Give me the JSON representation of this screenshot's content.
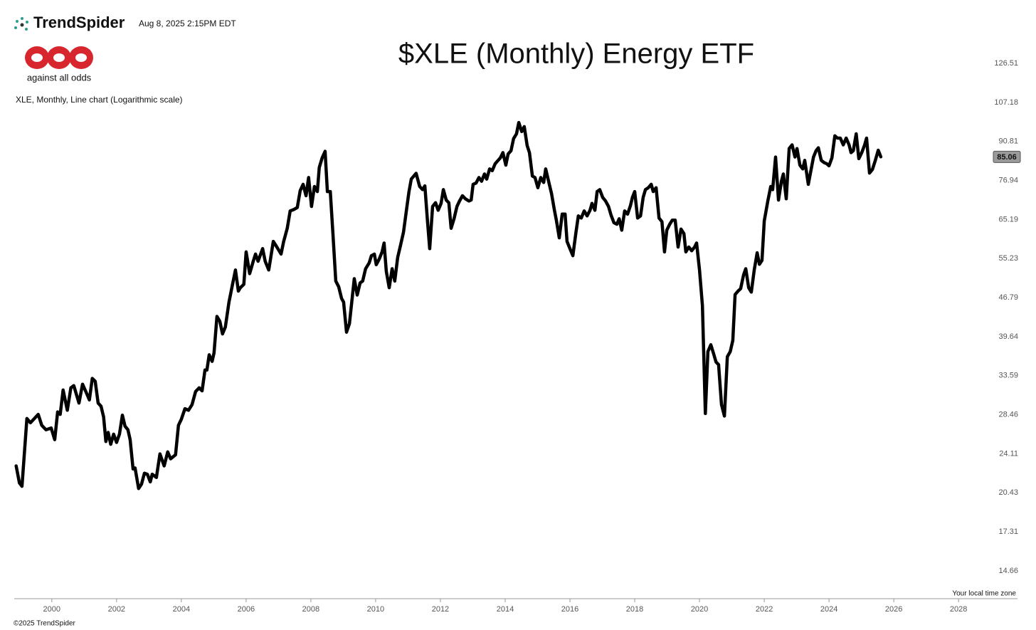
{
  "header": {
    "brand": "TrendSpider",
    "timestamp": "Aug 8, 2025 2:15PM EDT"
  },
  "logo_caption": "against all odds",
  "footer": {
    "copyright": "©2025 TrendSpider",
    "timezone_note": "Your local time zone"
  },
  "chart_data": {
    "type": "line",
    "title": "$XLE (Monthly) Energy ETF",
    "subtitle": "XLE, Monthly, Line chart (Logarithmic scale)",
    "color": "#000000",
    "log_scale": true,
    "last_value": 85.06,
    "xlim": [
      1998.84,
      2029.82
    ],
    "ylim": [
      13.07,
      138.1
    ],
    "xticks": [
      2000,
      2002,
      2004,
      2006,
      2008,
      2010,
      2012,
      2014,
      2016,
      2018,
      2020,
      2022,
      2024,
      2026,
      2028
    ],
    "yticks": [
      126.51,
      107.18,
      90.81,
      76.94,
      65.19,
      55.23,
      46.79,
      39.64,
      33.59,
      28.46,
      24.11,
      20.43,
      17.31,
      14.66
    ],
    "x": [
      1998.9,
      1999.0,
      1999.08,
      1999.23,
      1999.34,
      1999.58,
      1999.69,
      1999.82,
      1999.98,
      2000.09,
      2000.18,
      2000.26,
      2000.35,
      2000.48,
      2000.59,
      2000.68,
      2000.84,
      2000.95,
      2001.05,
      2001.16,
      2001.25,
      2001.34,
      2001.43,
      2001.52,
      2001.6,
      2001.67,
      2001.74,
      2001.82,
      2001.91,
      2002.0,
      2002.09,
      2002.18,
      2002.26,
      2002.35,
      2002.42,
      2002.51,
      2002.57,
      2002.68,
      2002.77,
      2002.86,
      2002.95,
      2003.04,
      2003.1,
      2003.23,
      2003.34,
      2003.47,
      2003.58,
      2003.67,
      2003.82,
      2003.91,
      2004.0,
      2004.11,
      2004.22,
      2004.33,
      2004.44,
      2004.55,
      2004.64,
      2004.73,
      2004.79,
      2004.86,
      2004.95,
      2005.01,
      2005.1,
      2005.19,
      2005.27,
      2005.36,
      2005.47,
      2005.58,
      2005.67,
      2005.76,
      2005.82,
      2005.93,
      2006.0,
      2006.11,
      2006.22,
      2006.29,
      2006.37,
      2006.51,
      2006.59,
      2006.7,
      2006.84,
      2006.95,
      2007.08,
      2007.16,
      2007.27,
      2007.36,
      2007.47,
      2007.58,
      2007.67,
      2007.76,
      2007.85,
      2007.93,
      2008.02,
      2008.11,
      2008.2,
      2008.26,
      2008.35,
      2008.44,
      2008.51,
      2008.6,
      2008.68,
      2008.77,
      2008.86,
      2008.95,
      2009.01,
      2009.1,
      2009.19,
      2009.25,
      2009.34,
      2009.43,
      2009.52,
      2009.6,
      2009.69,
      2009.8,
      2009.87,
      2009.96,
      2010.02,
      2010.11,
      2010.2,
      2010.26,
      2010.33,
      2010.42,
      2010.51,
      2010.59,
      2010.68,
      2010.77,
      2010.86,
      2010.95,
      2011.03,
      2011.1,
      2011.25,
      2011.36,
      2011.45,
      2011.52,
      2011.6,
      2011.67,
      2011.76,
      2011.85,
      2011.93,
      2012.02,
      2012.09,
      2012.18,
      2012.26,
      2012.33,
      2012.42,
      2012.51,
      2012.59,
      2012.68,
      2012.77,
      2012.88,
      2012.95,
      2013.01,
      2013.1,
      2013.19,
      2013.27,
      2013.36,
      2013.43,
      2013.52,
      2013.6,
      2013.69,
      2013.78,
      2013.85,
      2013.93,
      2014.02,
      2014.09,
      2014.18,
      2014.26,
      2014.35,
      2014.42,
      2014.51,
      2014.59,
      2014.68,
      2014.75,
      2014.84,
      2014.92,
      2015.01,
      2015.1,
      2015.19,
      2015.25,
      2015.34,
      2015.43,
      2015.52,
      2015.58,
      2015.67,
      2015.76,
      2015.85,
      2015.91,
      2016.0,
      2016.09,
      2016.18,
      2016.26,
      2016.35,
      2016.44,
      2016.53,
      2016.62,
      2016.68,
      2016.77,
      2016.84,
      2016.92,
      2017.01,
      2017.1,
      2017.19,
      2017.27,
      2017.36,
      2017.45,
      2017.52,
      2017.6,
      2017.69,
      2017.78,
      2017.87,
      2017.93,
      2018.0,
      2018.09,
      2018.18,
      2018.26,
      2018.33,
      2018.42,
      2018.51,
      2018.57,
      2018.66,
      2018.75,
      2018.84,
      2018.92,
      2018.99,
      2019.08,
      2019.16,
      2019.25,
      2019.34,
      2019.43,
      2019.52,
      2019.58,
      2019.67,
      2019.76,
      2019.85,
      2019.91,
      2020.0,
      2020.09,
      2020.18,
      2020.26,
      2020.35,
      2020.44,
      2020.51,
      2020.59,
      2020.68,
      2020.77,
      2020.86,
      2020.95,
      2021.03,
      2021.1,
      2021.19,
      2021.27,
      2021.36,
      2021.43,
      2021.52,
      2021.6,
      2021.69,
      2021.78,
      2021.85,
      2021.93,
      2022.0,
      2022.11,
      2022.2,
      2022.26,
      2022.35,
      2022.44,
      2022.53,
      2022.59,
      2022.68,
      2022.77,
      2022.86,
      2022.95,
      2023.01,
      2023.1,
      2023.19,
      2023.25,
      2023.36,
      2023.43,
      2023.52,
      2023.6,
      2023.67,
      2023.76,
      2023.85,
      2023.93,
      2024.0,
      2024.09,
      2024.18,
      2024.26,
      2024.35,
      2024.44,
      2024.53,
      2024.62,
      2024.68,
      2024.75,
      2024.84,
      2024.92,
      2025.01,
      2025.1,
      2025.16,
      2025.25,
      2025.34,
      2025.43,
      2025.52,
      2025.6
    ],
    "values": [
      22.9,
      21.3,
      21.0,
      28.0,
      27.5,
      28.5,
      27.2,
      26.7,
      26.9,
      25.6,
      28.8,
      28.5,
      31.6,
      29.0,
      31.9,
      32.2,
      29.9,
      32.4,
      31.4,
      30.3,
      33.2,
      32.8,
      29.9,
      29.5,
      28.2,
      25.4,
      26.4,
      25.1,
      26.2,
      25.3,
      26.2,
      28.4,
      27.1,
      26.7,
      25.6,
      22.6,
      22.7,
      20.8,
      21.2,
      22.2,
      22.1,
      21.4,
      22.1,
      21.8,
      24.1,
      22.9,
      24.3,
      23.6,
      24.0,
      27.2,
      27.9,
      29.2,
      29.0,
      29.7,
      31.4,
      31.9,
      31.5,
      34.4,
      34.4,
      36.7,
      35.7,
      37.0,
      43.2,
      42.3,
      40.1,
      41.3,
      45.9,
      49.5,
      52.6,
      48.1,
      48.8,
      49.5,
      56.8,
      51.8,
      54.6,
      56.3,
      54.6,
      57.6,
      54.6,
      52.6,
      59.4,
      58.0,
      56.3,
      59.4,
      62.8,
      67.6,
      68.0,
      68.6,
      73.7,
      75.7,
      72.1,
      77.9,
      68.9,
      75.0,
      73.4,
      81.3,
      84.7,
      87.1,
      73.4,
      73.4,
      61.4,
      50.2,
      49.0,
      46.6,
      45.9,
      40.4,
      41.9,
      45.2,
      50.7,
      47.3,
      49.8,
      50.2,
      52.9,
      54.2,
      55.9,
      56.3,
      53.8,
      55.1,
      56.8,
      59.0,
      52.3,
      48.8,
      52.9,
      50.2,
      55.5,
      58.5,
      61.8,
      67.8,
      73.4,
      77.4,
      79.3,
      75.0,
      74.0,
      75.2,
      65.0,
      57.6,
      68.9,
      70.0,
      67.8,
      69.8,
      74.0,
      70.8,
      70.0,
      62.8,
      65.4,
      68.9,
      70.5,
      72.1,
      71.2,
      70.5,
      70.8,
      75.7,
      76.1,
      77.9,
      76.7,
      79.1,
      77.4,
      80.8,
      80.2,
      82.6,
      83.8,
      84.7,
      86.6,
      82.1,
      86.1,
      87.3,
      91.9,
      93.8,
      98.4,
      94.7,
      96.7,
      89.2,
      86.6,
      78.4,
      77.9,
      74.6,
      77.9,
      76.3,
      80.8,
      76.7,
      72.8,
      67.8,
      65.0,
      60.3,
      66.7,
      66.7,
      59.4,
      57.6,
      55.9,
      61.4,
      66.2,
      65.6,
      67.6,
      66.2,
      67.8,
      69.8,
      67.8,
      73.4,
      74.0,
      71.6,
      70.5,
      68.9,
      66.4,
      64.3,
      63.9,
      65.4,
      62.3,
      67.6,
      66.7,
      69.2,
      71.6,
      73.4,
      65.6,
      66.2,
      71.6,
      74.0,
      74.6,
      75.7,
      73.4,
      74.6,
      65.6,
      64.6,
      56.8,
      62.3,
      63.9,
      65.0,
      65.0,
      58.0,
      62.6,
      61.4,
      56.8,
      58.0,
      57.1,
      58.0,
      59.0,
      52.6,
      45.2,
      28.6,
      37.2,
      38.3,
      36.8,
      35.6,
      35.2,
      29.7,
      28.3,
      36.4,
      37.2,
      39.0,
      47.4,
      48.1,
      48.6,
      51.5,
      52.9,
      48.8,
      47.9,
      52.6,
      56.6,
      53.9,
      54.8,
      64.8,
      70.5,
      75.0,
      74.0,
      85.0,
      70.8,
      76.7,
      79.1,
      71.2,
      88.1,
      89.5,
      85.0,
      88.1,
      82.1,
      80.8,
      83.8,
      75.7,
      79.7,
      85.0,
      87.3,
      88.4,
      83.8,
      83.0,
      82.6,
      81.9,
      84.7,
      93.0,
      92.1,
      92.1,
      89.5,
      92.1,
      89.5,
      86.6,
      87.3,
      93.8,
      84.4,
      86.6,
      89.5,
      92.1,
      79.4,
      80.6,
      83.8,
      87.5,
      85.06
    ]
  }
}
